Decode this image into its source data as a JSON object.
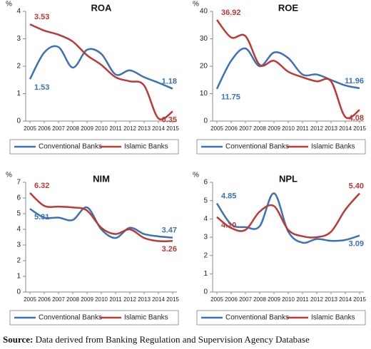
{
  "chart_data": [
    {
      "type": "line",
      "title": "ROA",
      "y_unit": "%",
      "categories": [
        "2005",
        "2006",
        "2007",
        "2008",
        "2009",
        "2010",
        "2011",
        "2012",
        "2013",
        "2014",
        "2015"
      ],
      "ylim": [
        0,
        4
      ],
      "yticks": [
        0,
        1,
        2,
        3,
        4
      ],
      "series": [
        {
          "name": "Conventional Banks",
          "color": "#3b72b5",
          "values": [
            1.53,
            2.5,
            2.7,
            1.95,
            2.6,
            2.45,
            1.7,
            1.85,
            1.6,
            1.4,
            1.18
          ],
          "value_labels": [
            "1.53",
            null,
            null,
            null,
            null,
            null,
            null,
            null,
            null,
            null,
            "1.18"
          ]
        },
        {
          "name": "Islamic Banks",
          "color": "#bb3a36",
          "values": [
            3.53,
            3.3,
            3.15,
            2.9,
            2.4,
            2.05,
            1.6,
            1.45,
            1.3,
            0.1,
            0.35
          ],
          "value_labels": [
            "3.53",
            null,
            null,
            null,
            null,
            null,
            null,
            null,
            null,
            null,
            "0.35"
          ]
        }
      ]
    },
    {
      "type": "line",
      "title": "ROE",
      "y_unit": "%",
      "categories": [
        "2005",
        "2006",
        "2007",
        "2008",
        "2009",
        "2010",
        "2011",
        "2012",
        "2013",
        "2014",
        "2015"
      ],
      "ylim": [
        0,
        40
      ],
      "yticks": [
        0,
        10,
        20,
        30,
        40
      ],
      "series": [
        {
          "name": "Conventional Banks",
          "color": "#3b72b5",
          "values": [
            11.75,
            22,
            26.5,
            20,
            25,
            23,
            17,
            17,
            15,
            13,
            11.96
          ],
          "value_labels": [
            "11.75",
            null,
            null,
            null,
            null,
            null,
            null,
            null,
            null,
            null,
            "11.96"
          ]
        },
        {
          "name": "Islamic Banks",
          "color": "#bb3a36",
          "values": [
            36.92,
            30.5,
            31,
            20.5,
            22,
            18,
            16,
            14.5,
            14.5,
            1.5,
            4.08
          ],
          "value_labels": [
            "36.92",
            null,
            null,
            null,
            null,
            null,
            null,
            null,
            null,
            null,
            "4.08"
          ]
        }
      ]
    },
    {
      "type": "line",
      "title": "NIM",
      "y_unit": "%",
      "categories": [
        "2005",
        "2006",
        "2007",
        "2008",
        "2009",
        "2010",
        "2011",
        "2012",
        "2013",
        "2014",
        "2015"
      ],
      "ylim": [
        0,
        7
      ],
      "yticks": [
        0,
        1,
        2,
        3,
        4,
        5,
        6,
        7
      ],
      "series": [
        {
          "name": "Conventional Banks",
          "color": "#3b72b5",
          "values": [
            5.31,
            4.75,
            4.75,
            4.6,
            5.4,
            4.0,
            3.45,
            4.1,
            3.7,
            3.55,
            3.47
          ],
          "value_labels": [
            "5.31",
            null,
            null,
            null,
            null,
            null,
            null,
            null,
            null,
            null,
            "3.47"
          ]
        },
        {
          "name": "Islamic Banks",
          "color": "#bb3a36",
          "values": [
            6.32,
            5.5,
            5.45,
            5.4,
            5.2,
            4.1,
            3.7,
            4.0,
            3.45,
            3.25,
            3.26
          ],
          "value_labels": [
            "6.32",
            null,
            null,
            null,
            null,
            null,
            null,
            null,
            null,
            null,
            "3.26"
          ]
        }
      ]
    },
    {
      "type": "line",
      "title": "NPL",
      "y_unit": "%",
      "categories": [
        "2005",
        "2006",
        "2007",
        "2008",
        "2009",
        "2010",
        "2011",
        "2012",
        "2013",
        "2014",
        "2015"
      ],
      "ylim": [
        0,
        6
      ],
      "yticks": [
        0,
        1,
        2,
        3,
        4,
        5,
        6
      ],
      "series": [
        {
          "name": "Conventional Banks",
          "color": "#3b72b5",
          "values": [
            4.85,
            3.7,
            3.55,
            3.6,
            5.4,
            3.3,
            2.7,
            2.9,
            2.8,
            2.85,
            3.09
          ],
          "value_labels": [
            "4.85",
            null,
            null,
            null,
            null,
            null,
            null,
            null,
            null,
            null,
            "3.09"
          ]
        },
        {
          "name": "Islamic Banks",
          "color": "#bb3a36",
          "values": [
            4.1,
            3.5,
            3.4,
            4.4,
            4.7,
            3.4,
            3.05,
            3.0,
            3.3,
            4.5,
            5.4
          ],
          "value_labels": [
            "4.10",
            null,
            null,
            null,
            null,
            null,
            null,
            null,
            null,
            null,
            "5.40"
          ]
        }
      ]
    }
  ],
  "source_label": "Source:",
  "source_text": "Data derived from Banking Regulation and Supervision Agency Database"
}
